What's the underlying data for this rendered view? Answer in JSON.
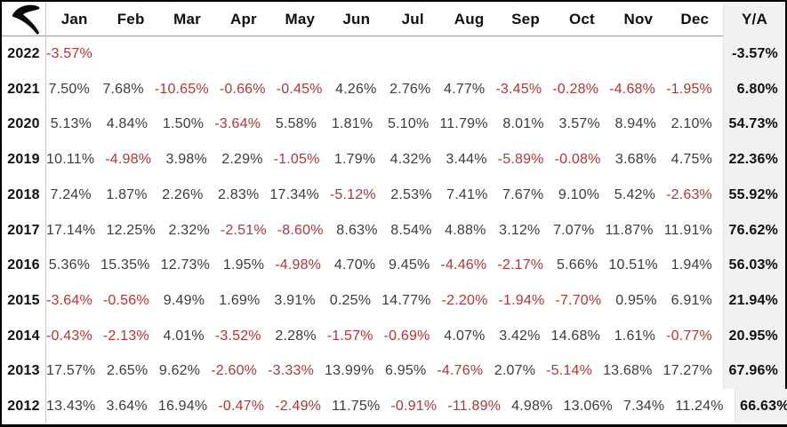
{
  "brand": {
    "logo_name": "r-swoosh-logo"
  },
  "colors": {
    "negative": "#b23636",
    "positive": "#3c3c3c",
    "strong_text": "#101010",
    "ya_column_bg": "#f1f1ef",
    "frame_border": "#000000",
    "grid_line": "#c9c9c9",
    "header_underline": "#9b9b9b"
  },
  "table": {
    "columns": [
      "Jan",
      "Feb",
      "Mar",
      "Apr",
      "May",
      "Jun",
      "Jul",
      "Aug",
      "Sep",
      "Oct",
      "Nov",
      "Dec",
      "Y/A"
    ],
    "rows": [
      {
        "year": "2022",
        "months": [
          "-3.57%",
          "",
          "",
          "",
          "",
          "",
          "",
          "",
          "",
          "",
          "",
          ""
        ],
        "ya": "-3.57%"
      },
      {
        "year": "2021",
        "months": [
          "7.50%",
          "7.68%",
          "-10.65%",
          "-0.66%",
          "-0.45%",
          "4.26%",
          "2.76%",
          "4.77%",
          "-3.45%",
          "-0.28%",
          "-4.68%",
          "-1.95%"
        ],
        "ya": "6.80%"
      },
      {
        "year": "2020",
        "months": [
          "5.13%",
          "4.84%",
          "1.50%",
          "-3.64%",
          "5.58%",
          "1.81%",
          "5.10%",
          "11.79%",
          "8.01%",
          "3.57%",
          "8.94%",
          "2.10%"
        ],
        "ya": "54.73%"
      },
      {
        "year": "2019",
        "months": [
          "10.11%",
          "-4.98%",
          "3.98%",
          "2.29%",
          "-1.05%",
          "1.79%",
          "4.32%",
          "3.44%",
          "-5.89%",
          "-0.08%",
          "3.68%",
          "4.75%"
        ],
        "ya": "22.36%"
      },
      {
        "year": "2018",
        "months": [
          "7.24%",
          "1.87%",
          "2.26%",
          "2.83%",
          "17.34%",
          "-5.12%",
          "2.53%",
          "7.41%",
          "7.67%",
          "9.10%",
          "5.42%",
          "-2.63%"
        ],
        "ya": "55.92%"
      },
      {
        "year": "2017",
        "months": [
          "17.14%",
          "12.25%",
          "2.32%",
          "-2.51%",
          "-8.60%",
          "8.63%",
          "8.54%",
          "4.88%",
          "3.12%",
          "7.07%",
          "11.87%",
          "11.91%"
        ],
        "ya": "76.62%"
      },
      {
        "year": "2016",
        "months": [
          "5.36%",
          "15.35%",
          "12.73%",
          "1.95%",
          "-4.98%",
          "4.70%",
          "9.45%",
          "-4.46%",
          "-2.17%",
          "5.66%",
          "10.51%",
          "1.94%"
        ],
        "ya": "56.03%"
      },
      {
        "year": "2015",
        "months": [
          "-3.64%",
          "-0.56%",
          "9.49%",
          "1.69%",
          "3.91%",
          "0.25%",
          "14.77%",
          "-2.20%",
          "-1.94%",
          "-7.70%",
          "0.95%",
          "6.91%"
        ],
        "ya": "21.94%"
      },
      {
        "year": "2014",
        "months": [
          "-0.43%",
          "-2.13%",
          "4.01%",
          "-3.52%",
          "2.28%",
          "-1.57%",
          "-0.69%",
          "4.07%",
          "3.42%",
          "14.68%",
          "1.61%",
          "-0.77%"
        ],
        "ya": "20.95%"
      },
      {
        "year": "2013",
        "months": [
          "17.57%",
          "2.65%",
          "9.62%",
          "-2.60%",
          "-3.33%",
          "13.99%",
          "6.95%",
          "-4.76%",
          "2.07%",
          "-5.14%",
          "13.68%",
          "17.27%"
        ],
        "ya": "67.96%"
      },
      {
        "year": "2012",
        "months": [
          "13.43%",
          "3.64%",
          "16.94%",
          "-0.47%",
          "-2.49%",
          "11.75%",
          "-0.91%",
          "-11.89%",
          "4.98%",
          "13.06%",
          "7.34%",
          "11.24%"
        ],
        "ya": "66.63%"
      }
    ]
  },
  "chart_data": {
    "type": "table",
    "title": "",
    "columns": [
      "Jan",
      "Feb",
      "Mar",
      "Apr",
      "May",
      "Jun",
      "Jul",
      "Aug",
      "Sep",
      "Oct",
      "Nov",
      "Dec",
      "Y/A"
    ],
    "row_labels": [
      "2022",
      "2021",
      "2020",
      "2019",
      "2018",
      "2017",
      "2016",
      "2015",
      "2014",
      "2013",
      "2012"
    ],
    "series": [
      {
        "name": "2022",
        "values": [
          -3.57,
          null,
          null,
          null,
          null,
          null,
          null,
          null,
          null,
          null,
          null,
          null
        ],
        "ya": -3.57
      },
      {
        "name": "2021",
        "values": [
          7.5,
          7.68,
          -10.65,
          -0.66,
          -0.45,
          4.26,
          2.76,
          4.77,
          -3.45,
          -0.28,
          -4.68,
          -1.95
        ],
        "ya": 6.8
      },
      {
        "name": "2020",
        "values": [
          5.13,
          4.84,
          1.5,
          -3.64,
          5.58,
          1.81,
          5.1,
          11.79,
          8.01,
          3.57,
          8.94,
          2.1
        ],
        "ya": 54.73
      },
      {
        "name": "2019",
        "values": [
          10.11,
          -4.98,
          3.98,
          2.29,
          -1.05,
          1.79,
          4.32,
          3.44,
          -5.89,
          -0.08,
          3.68,
          4.75
        ],
        "ya": 22.36
      },
      {
        "name": "2018",
        "values": [
          7.24,
          1.87,
          2.26,
          2.83,
          17.34,
          -5.12,
          2.53,
          7.41,
          7.67,
          9.1,
          5.42,
          -2.63
        ],
        "ya": 55.92
      },
      {
        "name": "2017",
        "values": [
          17.14,
          12.25,
          2.32,
          -2.51,
          -8.6,
          8.63,
          8.54,
          4.88,
          3.12,
          7.07,
          11.87,
          11.91
        ],
        "ya": 76.62
      },
      {
        "name": "2016",
        "values": [
          5.36,
          15.35,
          12.73,
          1.95,
          -4.98,
          4.7,
          9.45,
          -4.46,
          -2.17,
          5.66,
          10.51,
          1.94
        ],
        "ya": 56.03
      },
      {
        "name": "2015",
        "values": [
          -3.64,
          -0.56,
          9.49,
          1.69,
          3.91,
          0.25,
          14.77,
          -2.2,
          -1.94,
          -7.7,
          0.95,
          6.91
        ],
        "ya": 21.94
      },
      {
        "name": "2014",
        "values": [
          -0.43,
          -2.13,
          4.01,
          -3.52,
          2.28,
          -1.57,
          -0.69,
          4.07,
          3.42,
          14.68,
          1.61,
          -0.77
        ],
        "ya": 20.95
      },
      {
        "name": "2013",
        "values": [
          17.57,
          2.65,
          9.62,
          -2.6,
          -3.33,
          13.99,
          6.95,
          -4.76,
          2.07,
          -5.14,
          13.68,
          17.27
        ],
        "ya": 67.96
      },
      {
        "name": "2012",
        "values": [
          13.43,
          3.64,
          16.94,
          -0.47,
          -2.49,
          11.75,
          -0.91,
          -11.89,
          4.98,
          13.06,
          7.34,
          11.24
        ],
        "ya": 66.63
      }
    ],
    "units": "percent",
    "notes": "Monthly performance table; negative values shown in red; Y/A column is yearly accumulated return with gray background and bold text."
  }
}
